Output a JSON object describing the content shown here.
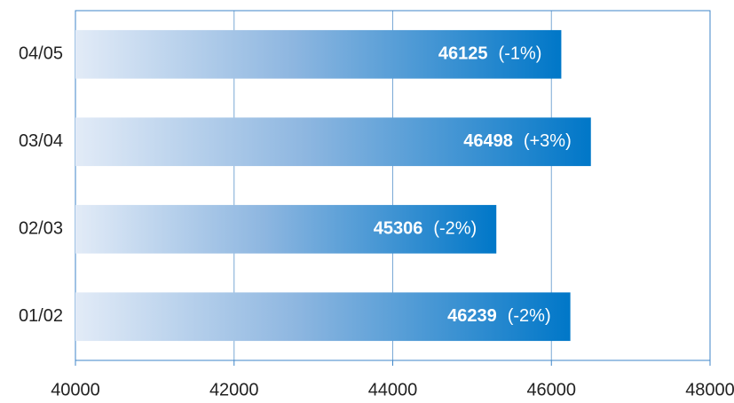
{
  "chart_data": {
    "type": "barh",
    "categories": [
      "04/05",
      "03/04",
      "02/03",
      "01/02"
    ],
    "values": [
      46125,
      46498,
      45306,
      46239
    ],
    "annotations": [
      "(-1%)",
      "(+3%)",
      "(-2%)",
      "(-2%)"
    ],
    "color": "#0077c8",
    "xlim": [
      40000,
      48000
    ],
    "xticks": [
      40000,
      42000,
      44000,
      46000,
      48000
    ],
    "grid": true
  }
}
